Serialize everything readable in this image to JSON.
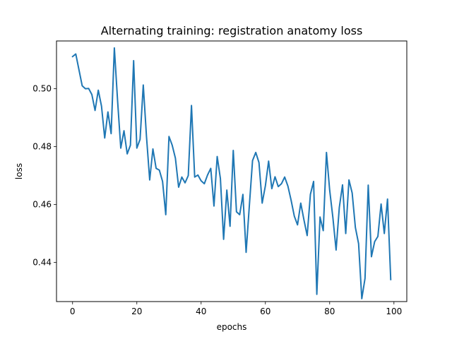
{
  "chart_data": {
    "type": "line",
    "title": "Alternating training: registration anatomy loss",
    "xlabel": "epochs",
    "ylabel": "loss",
    "xlim": [
      -5,
      104
    ],
    "ylim": [
      0.4265,
      0.5165
    ],
    "xticks": [
      0,
      20,
      40,
      60,
      80,
      100
    ],
    "xtick_labels": [
      "0",
      "20",
      "40",
      "60",
      "80",
      "100"
    ],
    "yticks": [
      0.44,
      0.46,
      0.48,
      0.5
    ],
    "ytick_labels": [
      "0.44",
      "0.46",
      "0.48",
      "0.50"
    ],
    "grid": false,
    "line_color": "#1f77b4",
    "series": [
      {
        "x": [
          0,
          1,
          2,
          3,
          4,
          5,
          6,
          7,
          8,
          9,
          10,
          11,
          12,
          13,
          14,
          15,
          16,
          17,
          18,
          19,
          20,
          21,
          22,
          23,
          24,
          25,
          26,
          27,
          28,
          29,
          30,
          31,
          32,
          33,
          34,
          35,
          36,
          37,
          38,
          39,
          40,
          41,
          42,
          43,
          44,
          45,
          46,
          47,
          48,
          49,
          50,
          51,
          52,
          53,
          54,
          55,
          56,
          57,
          58,
          59,
          60,
          61,
          62,
          63,
          64,
          65,
          66,
          67,
          68,
          69,
          70,
          71,
          72,
          73,
          74,
          75,
          76,
          77,
          78,
          79,
          80,
          81,
          82,
          83,
          84,
          85,
          86,
          87,
          88,
          89,
          90,
          91,
          92,
          93,
          94,
          95,
          96,
          97,
          98,
          99
        ],
        "values": [
          0.5111,
          0.512,
          0.5065,
          0.501,
          0.5,
          0.5001,
          0.498,
          0.4925,
          0.4995,
          0.494,
          0.483,
          0.492,
          0.4845,
          0.5141,
          0.496,
          0.4795,
          0.4855,
          0.4775,
          0.4805,
          0.5097,
          0.4795,
          0.4825,
          0.5013,
          0.4835,
          0.4685,
          0.4792,
          0.4725,
          0.4719,
          0.468,
          0.4565,
          0.4835,
          0.4805,
          0.476,
          0.466,
          0.4695,
          0.4675,
          0.47,
          0.4942,
          0.4695,
          0.4702,
          0.4682,
          0.4672,
          0.4702,
          0.4725,
          0.4595,
          0.4766,
          0.469,
          0.448,
          0.465,
          0.4525,
          0.4787,
          0.4575,
          0.4565,
          0.4635,
          0.4435,
          0.4595,
          0.4752,
          0.478,
          0.4745,
          0.4605,
          0.4665,
          0.475,
          0.4655,
          0.4696,
          0.4662,
          0.4672,
          0.4695,
          0.4664,
          0.4615,
          0.456,
          0.453,
          0.4605,
          0.4547,
          0.4493,
          0.4635,
          0.468,
          0.429,
          0.4557,
          0.451,
          0.478,
          0.465,
          0.4555,
          0.4443,
          0.459,
          0.4668,
          0.45,
          0.4685,
          0.464,
          0.4521,
          0.4465,
          0.4275,
          0.4345,
          0.4667,
          0.442,
          0.4472,
          0.449,
          0.4602,
          0.45,
          0.4619,
          0.4341
        ]
      }
    ]
  }
}
